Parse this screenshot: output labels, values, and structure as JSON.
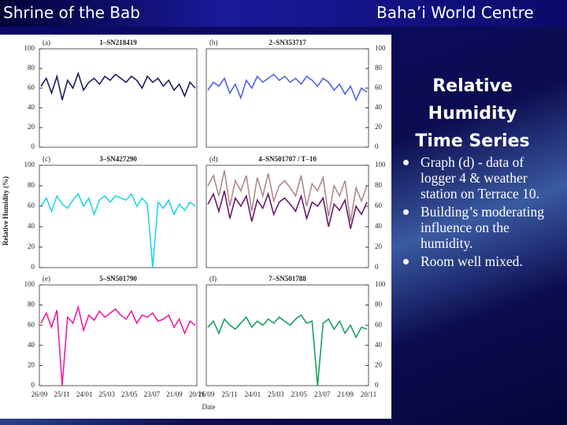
{
  "header": {
    "left": "Shrine of the Bab",
    "right": "Baha’i World Centre"
  },
  "slide_title": "Relative Humidity Time Series",
  "bullets": [
    "Graph (d) - data of logger 4 & weather station on Terrace 10.",
    "Building’s moderating influence on the humidity.",
    "Room well mixed."
  ],
  "figure": {
    "ylabel": "Relative Humidity (%)",
    "xlabel": "Date",
    "dates": [
      "26/09",
      "25/11",
      "24/01",
      "25/03",
      "23/05",
      "23/07",
      "21/09",
      "20/11"
    ]
  },
  "chart_data": [
    {
      "type": "line",
      "label": "(a)",
      "title": "1–SN218419",
      "ylim": [
        0,
        100
      ],
      "yticks": [
        0,
        20,
        40,
        60,
        80,
        100
      ],
      "series": [
        {
          "color": "#1a1f5a",
          "values": [
            62,
            70,
            55,
            72,
            48,
            68,
            60,
            75,
            58,
            66,
            70,
            64,
            72,
            68,
            74,
            70,
            66,
            72,
            68,
            60,
            72,
            66,
            70,
            62,
            68,
            58,
            64,
            52,
            66,
            60
          ]
        }
      ]
    },
    {
      "type": "line",
      "label": "(b)",
      "title": "2–SN353717",
      "ylim": [
        0,
        100
      ],
      "yticks": [
        0,
        20,
        40,
        60,
        80,
        100
      ],
      "series": [
        {
          "color": "#4f63e0",
          "values": [
            58,
            66,
            62,
            70,
            55,
            64,
            50,
            68,
            60,
            72,
            66,
            70,
            74,
            68,
            72,
            66,
            70,
            64,
            72,
            68,
            62,
            70,
            66,
            58,
            64,
            54,
            62,
            48,
            60,
            56
          ]
        }
      ]
    },
    {
      "type": "line",
      "label": "(c)",
      "title": "3–SN427290",
      "ylim": [
        0,
        100
      ],
      "yticks": [
        0,
        20,
        40,
        60,
        80,
        100
      ],
      "series": [
        {
          "color": "#22d4e8",
          "values": [
            60,
            68,
            55,
            70,
            62,
            58,
            66,
            72,
            60,
            68,
            52,
            66,
            70,
            64,
            70,
            68,
            66,
            72,
            60,
            68,
            62,
            0,
            64,
            58,
            66,
            52,
            62,
            56,
            64,
            60
          ]
        }
      ]
    },
    {
      "type": "line",
      "label": "(d)",
      "title": "4–SN501707 / T–10",
      "ylim": [
        0,
        100
      ],
      "yticks": [
        0,
        20,
        40,
        60,
        80,
        100
      ],
      "series": [
        {
          "color": "#b08a88",
          "values": [
            80,
            90,
            70,
            95,
            60,
            85,
            75,
            90,
            55,
            88,
            70,
            92,
            65,
            80,
            85,
            78,
            70,
            90,
            60,
            82,
            75,
            88,
            50,
            80,
            70,
            85,
            45,
            78,
            65,
            80
          ]
        },
        {
          "color": "#6a1a6a",
          "values": [
            62,
            72,
            55,
            75,
            48,
            68,
            60,
            70,
            45,
            66,
            58,
            72,
            52,
            64,
            68,
            62,
            55,
            70,
            48,
            64,
            60,
            68,
            40,
            62,
            56,
            66,
            38,
            60,
            52,
            64
          ]
        }
      ]
    },
    {
      "type": "line",
      "label": "(e)",
      "title": "5–SN501790",
      "ylim": [
        0,
        100
      ],
      "yticks": [
        0,
        20,
        40,
        60,
        80,
        100
      ],
      "series": [
        {
          "color": "#e81ea0",
          "values": [
            62,
            72,
            58,
            75,
            0,
            68,
            62,
            78,
            55,
            70,
            65,
            74,
            68,
            72,
            76,
            70,
            66,
            74,
            62,
            70,
            68,
            72,
            64,
            66,
            70,
            58,
            66,
            52,
            64,
            60
          ]
        }
      ]
    },
    {
      "type": "line",
      "label": "(f)",
      "title": "7–SN501788",
      "ylim": [
        0,
        100
      ],
      "yticks": [
        0,
        20,
        40,
        60,
        80,
        100
      ],
      "series": [
        {
          "color": "#18a060",
          "values": [
            58,
            64,
            52,
            66,
            60,
            56,
            62,
            68,
            58,
            64,
            60,
            66,
            62,
            68,
            64,
            60,
            66,
            70,
            62,
            64,
            0,
            62,
            66,
            56,
            64,
            52,
            60,
            48,
            58,
            56
          ]
        }
      ]
    }
  ]
}
